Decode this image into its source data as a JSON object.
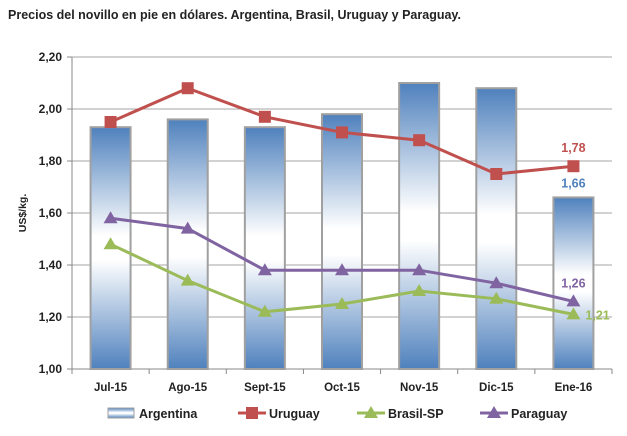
{
  "chart_data": {
    "type": "bar+line",
    "title": "Precios del novillo en pie en dólares. Argentina, Brasil, Uruguay y Paraguay.",
    "ylabel": "US$/kg.",
    "xlabel": "",
    "ylim": [
      1.0,
      2.2
    ],
    "yticks": [
      "1,00",
      "1,20",
      "1,40",
      "1,60",
      "1,80",
      "2,00",
      "2,20"
    ],
    "grid": true,
    "legend": "bottom",
    "categories": [
      "Jul-15",
      "Ago-15",
      "Sept-15",
      "Oct-15",
      "Nov-15",
      "Dic-15",
      "Ene-16"
    ],
    "series": [
      {
        "name": "Argentina",
        "kind": "bar",
        "color": "#4f81bd",
        "values": [
          1.93,
          1.96,
          1.93,
          1.98,
          2.1,
          2.08,
          1.66
        ],
        "last_label": "1,66"
      },
      {
        "name": "Uruguay",
        "kind": "line",
        "marker": "square",
        "color": "#c0504d",
        "values": [
          1.95,
          2.08,
          1.97,
          1.91,
          1.88,
          1.75,
          1.78
        ],
        "last_label": "1,78"
      },
      {
        "name": "Brasil-SP",
        "kind": "line",
        "marker": "triangle",
        "color": "#9bbb59",
        "values": [
          1.48,
          1.34,
          1.22,
          1.25,
          1.3,
          1.27,
          1.21
        ],
        "last_label": "1,21"
      },
      {
        "name": "Paraguay",
        "kind": "line",
        "marker": "triangle",
        "color": "#8064a2",
        "values": [
          1.58,
          1.54,
          1.38,
          1.38,
          1.38,
          1.33,
          1.26
        ],
        "last_label": "1,26"
      }
    ]
  }
}
